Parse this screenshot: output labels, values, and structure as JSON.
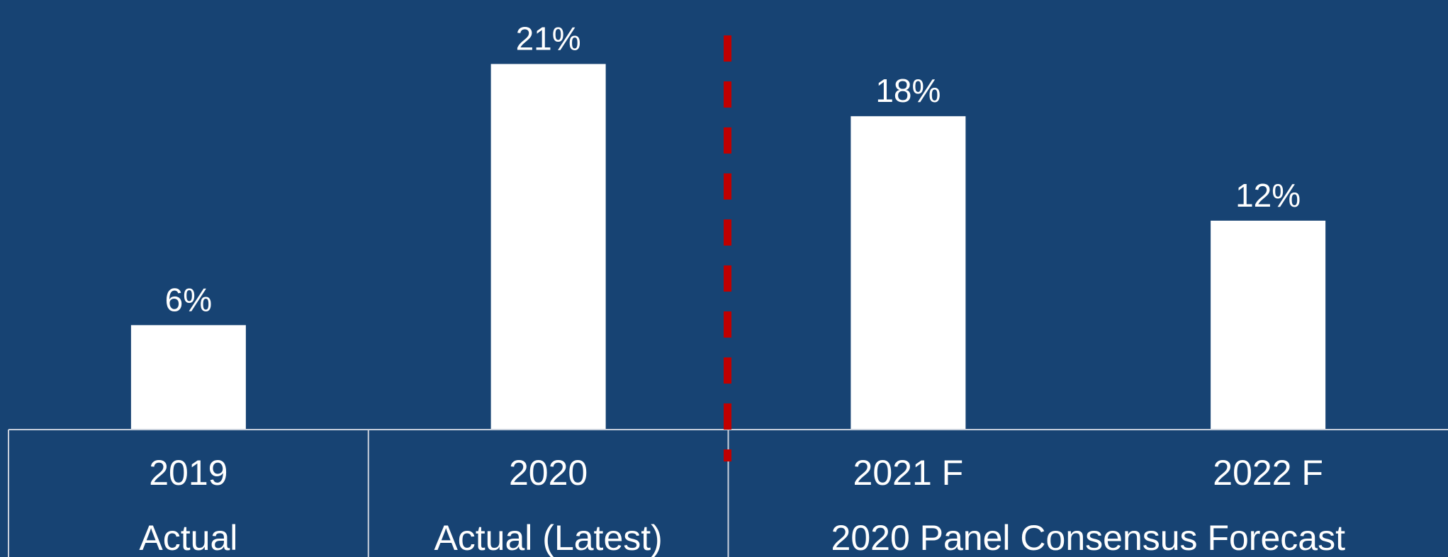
{
  "chart_data": {
    "type": "bar",
    "categories": [
      "2019",
      "2020",
      "2021 F",
      "2022 F"
    ],
    "values": [
      6,
      21,
      18,
      12
    ],
    "value_labels": [
      "6%",
      "21%",
      "18%",
      "12%"
    ],
    "groups": [
      {
        "label": "Actual",
        "categories": [
          "2019"
        ]
      },
      {
        "label": "Actual (Latest)",
        "categories": [
          "2020"
        ]
      },
      {
        "label": "2020 Panel Consensus Forecast",
        "categories": [
          "2021 F",
          "2022 F"
        ]
      }
    ],
    "title": "",
    "xlabel": "",
    "ylabel": "",
    "ylim": [
      0,
      22
    ],
    "grid": false,
    "legend": "none",
    "colors": {
      "background": "#174373",
      "bar": "#ffffff",
      "text": "#ffffff",
      "axis": "#c8d0dc",
      "divider": "#c00000"
    }
  }
}
